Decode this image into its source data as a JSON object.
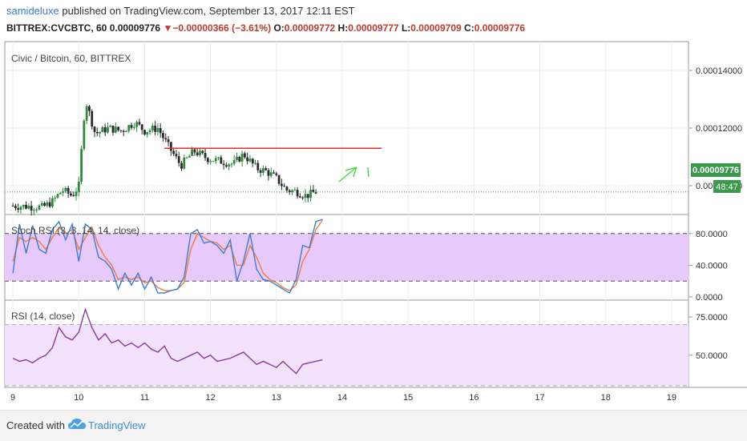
{
  "header": {
    "user": "samideluxe",
    "published": " published on TradingView.com, September 13, 2017 12:11 EST",
    "symbol": "BITTREX:CVCBTC, 60",
    "last": "0.00009776",
    "arrow": "▼",
    "change": "−0.00000366 (−3.61%)",
    "o_label": "O:",
    "o_value": "0.00009772",
    "h_label": "H:",
    "h_value": "0.00009777",
    "l_label": "L:",
    "l_value": "0.00009709",
    "c_label": "C:",
    "c_value": "0.00009776"
  },
  "footer": {
    "created": "Created with",
    "brand": "TradingView"
  },
  "colors": {
    "up": "#2e8b3e",
    "down": "#2a2a2a",
    "resistance": "#e0302a",
    "annotation": "#3ddc3d",
    "stoch_k": "#3b7dd8",
    "stoch_d": "#f07d3a",
    "rsi": "#8a3aa8",
    "band": "#e7c9fb",
    "rsi_band": "#f2e2fc",
    "price_tag": "#3a9a4a"
  },
  "chart_data": [
    {
      "type": "candlestick",
      "title": "Civic / Bitcoin, 60, BITTREX",
      "x_ticks": [
        "9",
        "10",
        "11",
        "12",
        "13",
        "14",
        "15",
        "16",
        "17",
        "18",
        "19"
      ],
      "x_range": [
        8.95,
        19.05
      ],
      "ylim": [
        9e-05,
        0.00015
      ],
      "y_ticks": [
        "0.00014000",
        "0.00012000",
        "0.00010000"
      ],
      "last_price_label": "0.00009776",
      "countdown_label": "48:47",
      "resistance": {
        "value": 0.000113,
        "x_start": 11.3,
        "x_end": 14.6
      },
      "close_series": [
        {
          "x": 9.0,
          "y": 9.3e-05
        },
        {
          "x": 9.25,
          "y": 9.28e-05
        },
        {
          "x": 9.45,
          "y": 9.25e-05
        },
        {
          "x": 9.6,
          "y": 9.45e-05
        },
        {
          "x": 9.75,
          "y": 9.85e-05
        },
        {
          "x": 9.9,
          "y": 9.65e-05
        },
        {
          "x": 10.0,
          "y": 0.0001
        },
        {
          "x": 10.1,
          "y": 0.00013
        },
        {
          "x": 10.25,
          "y": 0.000118
        },
        {
          "x": 10.45,
          "y": 0.00012
        },
        {
          "x": 10.65,
          "y": 0.000119
        },
        {
          "x": 10.85,
          "y": 0.000122
        },
        {
          "x": 11.0,
          "y": 0.000119
        },
        {
          "x": 11.2,
          "y": 0.00012
        },
        {
          "x": 11.35,
          "y": 0.000114
        },
        {
          "x": 11.55,
          "y": 0.000107
        },
        {
          "x": 11.75,
          "y": 0.000112
        },
        {
          "x": 11.95,
          "y": 0.0001095
        },
        {
          "x": 12.15,
          "y": 0.0001085
        },
        {
          "x": 12.35,
          "y": 0.0001075
        },
        {
          "x": 12.5,
          "y": 0.000111
        },
        {
          "x": 12.7,
          "y": 0.000106
        },
        {
          "x": 12.85,
          "y": 0.000105
        },
        {
          "x": 13.0,
          "y": 0.0001025
        },
        {
          "x": 13.15,
          "y": 9.85e-05
        },
        {
          "x": 13.3,
          "y": 9.8e-05
        },
        {
          "x": 13.45,
          "y": 9.65e-05
        },
        {
          "x": 13.6,
          "y": 9.78e-05
        }
      ]
    },
    {
      "type": "line",
      "title": "Stoch RSI (3, 3, 14, 14, close)",
      "ylim": [
        0,
        100
      ],
      "y_ticks": [
        "80.0000",
        "40.0000",
        "0.0000"
      ],
      "bands": [
        20,
        80
      ],
      "series": [
        {
          "name": "K",
          "x": [
            9.0,
            9.1,
            9.2,
            9.3,
            9.4,
            9.5,
            9.6,
            9.7,
            9.8,
            9.9,
            10.0,
            10.1,
            10.2,
            10.3,
            10.4,
            10.5,
            10.6,
            10.7,
            10.8,
            10.9,
            11.0,
            11.1,
            11.2,
            11.3,
            11.4,
            11.5,
            11.6,
            11.7,
            11.8,
            11.9,
            12.0,
            12.1,
            12.2,
            12.3,
            12.4,
            12.5,
            12.6,
            12.7,
            12.8,
            12.9,
            13.0,
            13.1,
            13.2,
            13.3,
            13.4,
            13.5,
            13.6,
            13.7
          ],
          "y": [
            30,
            92,
            55,
            90,
            60,
            55,
            85,
            95,
            72,
            92,
            45,
            92,
            85,
            50,
            45,
            35,
            10,
            30,
            15,
            30,
            10,
            25,
            5,
            5,
            8,
            10,
            25,
            80,
            85,
            68,
            70,
            65,
            55,
            72,
            20,
            45,
            80,
            35,
            22,
            20,
            15,
            10,
            5,
            22,
            65,
            62,
            95,
            98
          ]
        },
        {
          "name": "D",
          "x": [
            9.0,
            9.1,
            9.2,
            9.3,
            9.4,
            9.5,
            9.6,
            9.7,
            9.8,
            9.9,
            10.0,
            10.1,
            10.2,
            10.3,
            10.4,
            10.5,
            10.6,
            10.7,
            10.8,
            10.9,
            11.0,
            11.1,
            11.2,
            11.3,
            11.4,
            11.5,
            11.6,
            11.7,
            11.8,
            11.9,
            12.0,
            12.1,
            12.2,
            12.3,
            12.4,
            12.5,
            12.6,
            12.7,
            12.8,
            12.9,
            13.0,
            13.1,
            13.2,
            13.3,
            13.4,
            13.5,
            13.6,
            13.7
          ],
          "y": [
            45,
            75,
            70,
            75,
            70,
            60,
            75,
            88,
            80,
            85,
            60,
            75,
            88,
            65,
            50,
            40,
            22,
            25,
            22,
            25,
            18,
            20,
            12,
            8,
            8,
            10,
            18,
            60,
            80,
            75,
            70,
            68,
            60,
            65,
            40,
            40,
            65,
            50,
            30,
            22,
            18,
            12,
            8,
            15,
            45,
            60,
            85,
            97
          ]
        }
      ]
    },
    {
      "type": "line",
      "title": "RSI (14, close)",
      "ylim": [
        30,
        85
      ],
      "y_ticks": [
        "75.0000",
        "50.0000"
      ],
      "bands": [
        30,
        70
      ],
      "series": [
        {
          "name": "RSI",
          "x": [
            9.0,
            9.1,
            9.2,
            9.3,
            9.4,
            9.5,
            9.6,
            9.7,
            9.8,
            9.9,
            10.0,
            10.1,
            10.2,
            10.3,
            10.4,
            10.5,
            10.6,
            10.7,
            10.8,
            10.9,
            11.0,
            11.1,
            11.2,
            11.3,
            11.4,
            11.5,
            11.6,
            11.7,
            11.8,
            11.9,
            12.0,
            12.1,
            12.2,
            12.3,
            12.4,
            12.5,
            12.6,
            12.7,
            12.8,
            12.9,
            13.0,
            13.1,
            13.2,
            13.3,
            13.4,
            13.5,
            13.6,
            13.7
          ],
          "y": [
            48,
            46,
            47,
            45,
            48,
            50,
            55,
            68,
            62,
            60,
            65,
            80,
            68,
            60,
            64,
            58,
            60,
            56,
            58,
            55,
            58,
            54,
            52,
            56,
            48,
            46,
            48,
            50,
            52,
            48,
            50,
            46,
            47,
            48,
            50,
            52,
            48,
            44,
            46,
            44,
            42,
            46,
            42,
            38,
            44,
            45,
            46,
            47
          ]
        }
      ]
    }
  ]
}
